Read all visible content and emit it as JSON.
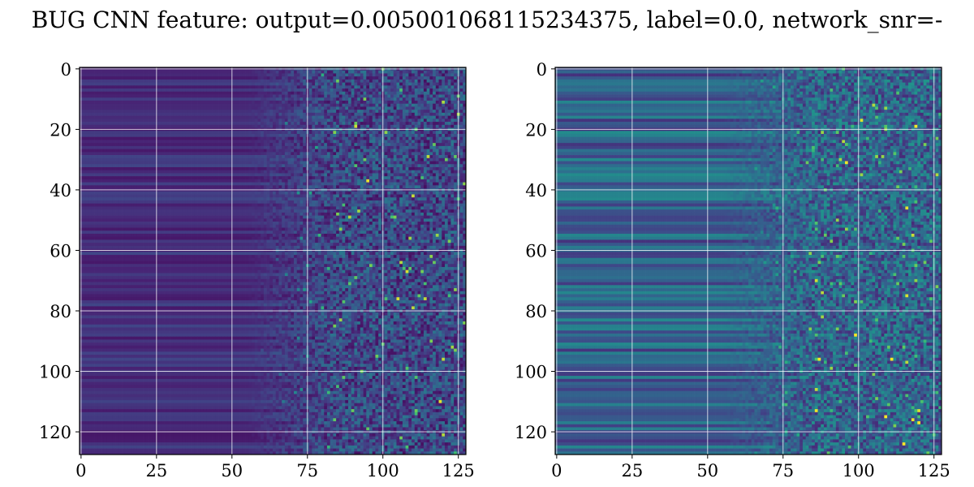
{
  "figure": {
    "title": "BUG CNN feature: output=0.005001068115234375, label=0.0, network_snr=-"
  },
  "chart_data": [
    {
      "type": "heatmap",
      "title": "",
      "xlabel": "",
      "ylabel": "",
      "colormap": "viridis",
      "shape": [
        128,
        128
      ],
      "xlim": [
        -0.5,
        127.5
      ],
      "ylim": [
        127.5,
        -0.5
      ],
      "xticks": [
        0,
        25,
        50,
        75,
        100,
        125
      ],
      "yticks": [
        0,
        20,
        40,
        60,
        80,
        100,
        120
      ],
      "grid": true,
      "values_summary": "low, row-banded values for columns 0-60, transitioning to high-variance noisy values with bright yellow speckles for columns 75-127"
    },
    {
      "type": "heatmap",
      "title": "",
      "xlabel": "",
      "ylabel": "",
      "colormap": "viridis",
      "shape": [
        128,
        128
      ],
      "xlim": [
        -0.5,
        127.5
      ],
      "ylim": [
        127.5,
        -0.5
      ],
      "xticks": [
        0,
        25,
        50,
        75,
        100,
        125
      ],
      "yticks": [
        0,
        20,
        40,
        60,
        80,
        100,
        120
      ],
      "grid": true,
      "values_summary": "moderate row-banded values for columns 0-70 with teal/green stripes, noisy green/yellow speckles for columns 75-127"
    }
  ],
  "colors": {
    "viridis_low": "#440154",
    "viridis_mid": "#21918c",
    "viridis_high": "#fde725",
    "grid": "#ffffff",
    "axis": "#000000"
  }
}
